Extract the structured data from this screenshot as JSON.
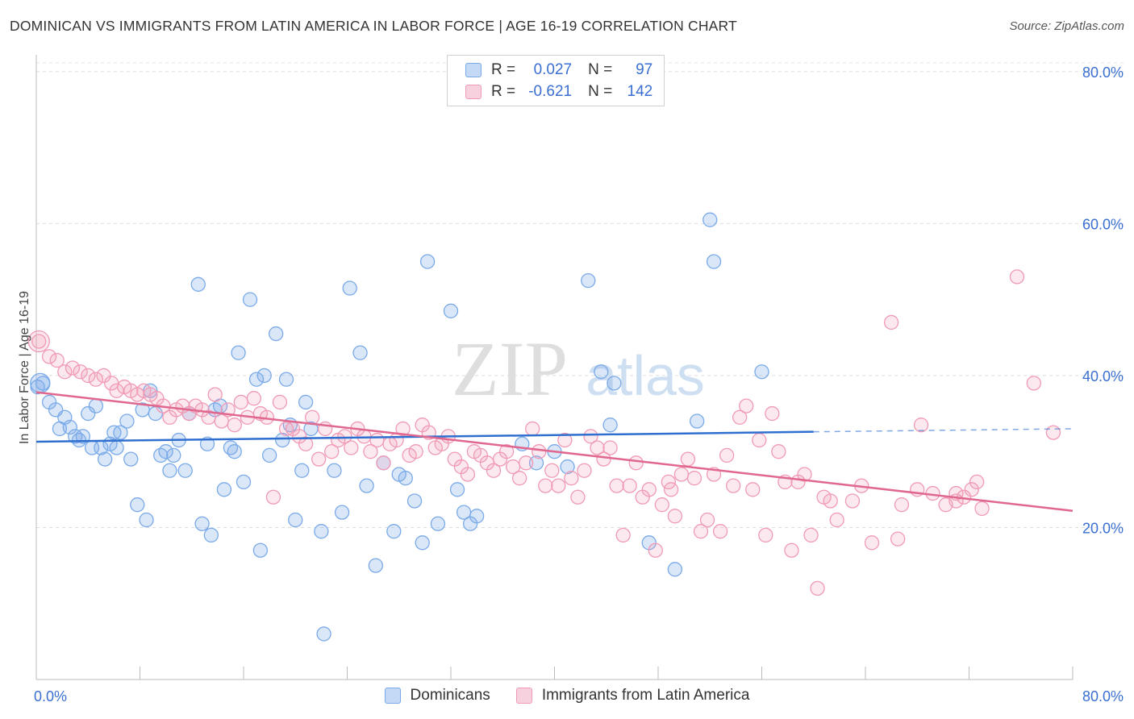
{
  "title": "DOMINICAN VS IMMIGRANTS FROM LATIN AMERICA IN LABOR FORCE | AGE 16-19 CORRELATION CHART",
  "source": "Source: ZipAtlas.com",
  "watermark": {
    "zip": "ZIP",
    "atlas": "atlas"
  },
  "legend": {
    "rows": [
      {
        "r_label": "R =",
        "r_value": "0.027",
        "n_label": "N =",
        "n_value": "97",
        "color": "#7aaae8"
      },
      {
        "r_label": "R =",
        "r_value": "-0.621",
        "n_label": "N =",
        "n_value": "142",
        "color": "#f09ab5"
      }
    ]
  },
  "bottom_legend": [
    "Dominicans",
    "Immigrants from Latin America"
  ],
  "chart_data": {
    "type": "scatter",
    "xlabel": "",
    "ylabel": "In Labor Force | Age 16-19",
    "xlim": [
      0,
      80
    ],
    "ylim": [
      0,
      82
    ],
    "x_tick_labels": [
      "0.0%",
      "80.0%"
    ],
    "y_tick_labels": [
      "20.0%",
      "40.0%",
      "60.0%",
      "80.0%"
    ],
    "y_ticks": [
      20,
      40,
      60,
      80
    ],
    "grid": true,
    "legend_position": "top-center",
    "series": [
      {
        "name": "Dominicans",
        "color": "#7aaae8",
        "fill": "rgba(122,170,232,0.28)",
        "line_color": "#2f6fd0",
        "trend": {
          "x0": 0,
          "y0": 31.3,
          "x1": 60,
          "y1": 32.6,
          "dash_to": 80,
          "dash_y": 33.0
        },
        "points": [
          [
            0.1,
            38.5
          ],
          [
            0.5,
            39.0
          ],
          [
            1.0,
            36.5
          ],
          [
            1.5,
            35.5
          ],
          [
            1.8,
            33.0
          ],
          [
            2.2,
            34.5
          ],
          [
            2.6,
            33.2
          ],
          [
            3.0,
            32.0
          ],
          [
            3.3,
            31.5
          ],
          [
            3.6,
            32.0
          ],
          [
            4.0,
            35.0
          ],
          [
            4.3,
            30.5
          ],
          [
            4.6,
            36.0
          ],
          [
            5.0,
            30.5
          ],
          [
            5.3,
            29.0
          ],
          [
            5.7,
            31.0
          ],
          [
            6.0,
            32.5
          ],
          [
            6.2,
            30.5
          ],
          [
            6.5,
            32.5
          ],
          [
            7.0,
            34.0
          ],
          [
            7.3,
            29.0
          ],
          [
            7.8,
            23.0
          ],
          [
            8.2,
            35.5
          ],
          [
            8.5,
            21.0
          ],
          [
            8.8,
            38.0
          ],
          [
            9.2,
            35.0
          ],
          [
            9.6,
            29.5
          ],
          [
            10.0,
            30.0
          ],
          [
            10.3,
            27.5
          ],
          [
            10.6,
            29.5
          ],
          [
            11.0,
            31.5
          ],
          [
            11.5,
            27.5
          ],
          [
            11.8,
            35.0
          ],
          [
            12.5,
            52.0
          ],
          [
            12.8,
            20.5
          ],
          [
            13.2,
            31.0
          ],
          [
            13.5,
            19.0
          ],
          [
            13.8,
            35.5
          ],
          [
            14.2,
            36.0
          ],
          [
            14.5,
            25.0
          ],
          [
            15.0,
            30.5
          ],
          [
            15.3,
            30.0
          ],
          [
            15.6,
            43.0
          ],
          [
            16.0,
            26.0
          ],
          [
            16.5,
            50.0
          ],
          [
            17.0,
            39.5
          ],
          [
            17.3,
            17.0
          ],
          [
            17.6,
            40.0
          ],
          [
            18.0,
            29.5
          ],
          [
            18.5,
            45.5
          ],
          [
            19.0,
            31.5
          ],
          [
            19.3,
            39.5
          ],
          [
            19.6,
            33.5
          ],
          [
            20.0,
            21.0
          ],
          [
            20.5,
            27.5
          ],
          [
            20.8,
            36.5
          ],
          [
            21.2,
            33.0
          ],
          [
            22.0,
            19.5
          ],
          [
            22.2,
            6.0
          ],
          [
            23.0,
            27.5
          ],
          [
            23.6,
            22.0
          ],
          [
            24.2,
            51.5
          ],
          [
            25.0,
            43.0
          ],
          [
            25.5,
            25.5
          ],
          [
            26.2,
            15.0
          ],
          [
            26.8,
            28.5
          ],
          [
            27.6,
            19.5
          ],
          [
            28.0,
            27.0
          ],
          [
            28.5,
            26.5
          ],
          [
            29.2,
            23.5
          ],
          [
            29.8,
            18.0
          ],
          [
            30.2,
            55.0
          ],
          [
            31.0,
            20.5
          ],
          [
            32.0,
            48.5
          ],
          [
            32.5,
            25.0
          ],
          [
            33.0,
            22.0
          ],
          [
            33.5,
            20.5
          ],
          [
            34.0,
            21.5
          ],
          [
            37.5,
            31.0
          ],
          [
            38.6,
            28.5
          ],
          [
            40.0,
            30.0
          ],
          [
            41.0,
            28.0
          ],
          [
            42.6,
            52.5
          ],
          [
            43.6,
            40.5
          ],
          [
            44.3,
            33.5
          ],
          [
            44.6,
            39.0
          ],
          [
            47.3,
            18.0
          ],
          [
            49.3,
            14.5
          ],
          [
            51.0,
            34.0
          ],
          [
            52.0,
            60.5
          ],
          [
            52.3,
            55.0
          ],
          [
            56.0,
            40.5
          ]
        ]
      },
      {
        "name": "Immigrants from Latin America",
        "color": "#f09ab5",
        "fill": "rgba(240,154,181,0.22)",
        "line_color": "#e0688e",
        "trend": {
          "x0": 0,
          "y0": 37.8,
          "x1": 80,
          "y1": 22.2
        },
        "points": [
          [
            0.2,
            44.5
          ],
          [
            1.0,
            42.5
          ],
          [
            1.6,
            42.0
          ],
          [
            2.2,
            40.5
          ],
          [
            2.8,
            41.0
          ],
          [
            3.4,
            40.5
          ],
          [
            4.0,
            40.0
          ],
          [
            4.6,
            39.5
          ],
          [
            5.2,
            40.0
          ],
          [
            5.8,
            39.0
          ],
          [
            6.2,
            38.0
          ],
          [
            6.8,
            38.5
          ],
          [
            7.3,
            38.0
          ],
          [
            7.8,
            37.5
          ],
          [
            8.3,
            38.0
          ],
          [
            8.8,
            37.5
          ],
          [
            9.3,
            37.0
          ],
          [
            9.8,
            36.0
          ],
          [
            10.3,
            34.5
          ],
          [
            10.8,
            35.5
          ],
          [
            11.3,
            36.0
          ],
          [
            11.8,
            35.0
          ],
          [
            12.3,
            36.0
          ],
          [
            12.8,
            35.5
          ],
          [
            13.3,
            34.5
          ],
          [
            13.8,
            37.5
          ],
          [
            14.3,
            34.0
          ],
          [
            14.8,
            35.5
          ],
          [
            15.3,
            33.5
          ],
          [
            15.8,
            36.5
          ],
          [
            16.3,
            34.5
          ],
          [
            16.8,
            37.0
          ],
          [
            17.3,
            35.0
          ],
          [
            17.8,
            34.5
          ],
          [
            18.3,
            24.0
          ],
          [
            18.8,
            36.5
          ],
          [
            19.3,
            33.0
          ],
          [
            19.8,
            33.0
          ],
          [
            20.3,
            32.0
          ],
          [
            20.8,
            31.0
          ],
          [
            21.3,
            34.5
          ],
          [
            21.8,
            29.0
          ],
          [
            22.3,
            33.0
          ],
          [
            22.8,
            30.0
          ],
          [
            23.3,
            31.5
          ],
          [
            23.8,
            32.0
          ],
          [
            24.3,
            30.5
          ],
          [
            24.8,
            33.0
          ],
          [
            25.3,
            32.0
          ],
          [
            25.8,
            30.0
          ],
          [
            26.3,
            31.5
          ],
          [
            26.8,
            28.5
          ],
          [
            27.3,
            31.0
          ],
          [
            27.8,
            31.5
          ],
          [
            28.3,
            33.0
          ],
          [
            28.8,
            29.5
          ],
          [
            29.3,
            30.0
          ],
          [
            29.8,
            33.5
          ],
          [
            30.3,
            32.5
          ],
          [
            30.8,
            30.5
          ],
          [
            31.3,
            31.0
          ],
          [
            31.8,
            32.0
          ],
          [
            32.3,
            29.0
          ],
          [
            32.8,
            28.0
          ],
          [
            33.3,
            27.0
          ],
          [
            33.8,
            30.0
          ],
          [
            34.3,
            29.5
          ],
          [
            34.8,
            28.5
          ],
          [
            35.3,
            27.5
          ],
          [
            35.8,
            29.0
          ],
          [
            36.3,
            30.0
          ],
          [
            36.8,
            28.0
          ],
          [
            37.3,
            26.5
          ],
          [
            37.8,
            28.5
          ],
          [
            38.3,
            33.0
          ],
          [
            38.8,
            30.0
          ],
          [
            39.3,
            25.5
          ],
          [
            39.8,
            27.5
          ],
          [
            40.3,
            25.5
          ],
          [
            40.8,
            31.5
          ],
          [
            41.3,
            26.5
          ],
          [
            41.8,
            24.0
          ],
          [
            42.3,
            27.5
          ],
          [
            42.8,
            32.0
          ],
          [
            43.3,
            30.5
          ],
          [
            43.8,
            29.0
          ],
          [
            44.3,
            30.5
          ],
          [
            44.8,
            25.5
          ],
          [
            45.3,
            19.0
          ],
          [
            45.8,
            25.5
          ],
          [
            46.3,
            28.5
          ],
          [
            46.8,
            24.0
          ],
          [
            47.3,
            25.0
          ],
          [
            47.8,
            17.0
          ],
          [
            48.3,
            23.0
          ],
          [
            48.8,
            26.0
          ],
          [
            49.3,
            21.5
          ],
          [
            49.8,
            27.0
          ],
          [
            50.3,
            29.0
          ],
          [
            50.8,
            26.5
          ],
          [
            51.3,
            19.5
          ],
          [
            51.8,
            21.0
          ],
          [
            52.3,
            27.0
          ],
          [
            52.8,
            19.5
          ],
          [
            53.3,
            29.5
          ],
          [
            53.8,
            25.5
          ],
          [
            54.3,
            34.5
          ],
          [
            54.8,
            36.0
          ],
          [
            55.3,
            25.0
          ],
          [
            55.8,
            31.5
          ],
          [
            56.3,
            19.0
          ],
          [
            56.8,
            35.0
          ],
          [
            57.3,
            30.0
          ],
          [
            57.8,
            26.0
          ],
          [
            58.3,
            17.0
          ],
          [
            58.8,
            26.0
          ],
          [
            59.3,
            27.0
          ],
          [
            59.8,
            19.0
          ],
          [
            60.3,
            12.0
          ],
          [
            60.8,
            24.0
          ],
          [
            61.3,
            23.5
          ],
          [
            61.8,
            21.0
          ],
          [
            63.0,
            23.5
          ],
          [
            63.7,
            25.5
          ],
          [
            64.5,
            18.0
          ],
          [
            66.0,
            47.0
          ],
          [
            66.5,
            18.5
          ],
          [
            66.8,
            23.0
          ],
          [
            68.0,
            25.0
          ],
          [
            68.3,
            33.5
          ],
          [
            69.2,
            24.5
          ],
          [
            70.2,
            23.0
          ],
          [
            71.0,
            23.5
          ],
          [
            71.6,
            24.0
          ],
          [
            72.2,
            25.0
          ],
          [
            72.6,
            26.0
          ],
          [
            73.0,
            22.5
          ],
          [
            75.7,
            53.0
          ],
          [
            77.0,
            39.0
          ],
          [
            78.5,
            32.5
          ],
          [
            71.0,
            24.5
          ],
          [
            49.0,
            25.0
          ]
        ]
      }
    ]
  }
}
